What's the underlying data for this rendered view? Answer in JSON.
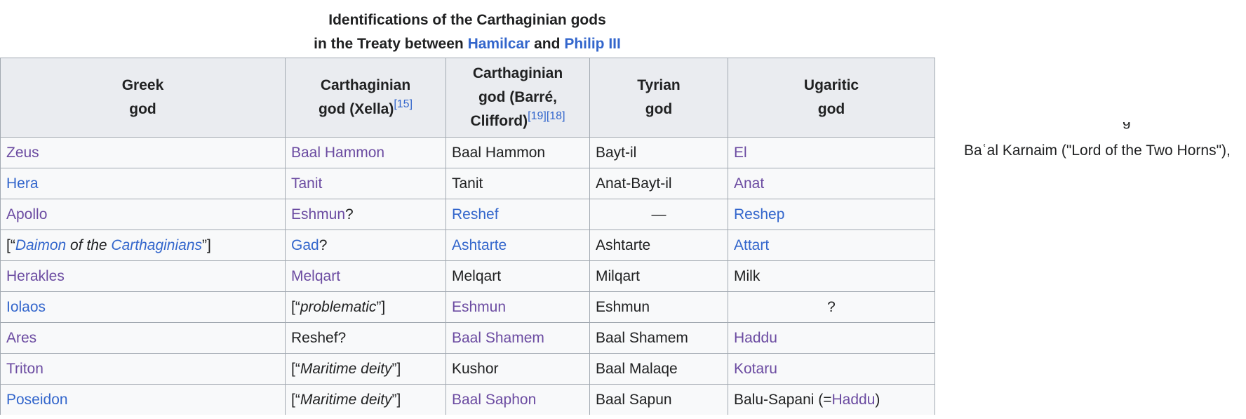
{
  "caption": {
    "line1": "Identifications of the Carthaginian gods",
    "line2_prefix": "in the Treaty between ",
    "hamilcar": "Hamilcar",
    "and": " and ",
    "philip": "Philip III"
  },
  "headers": {
    "greek": [
      "Greek",
      "god"
    ],
    "xella": [
      "Carthaginian",
      "god (Xella)"
    ],
    "xella_ref": "[15]",
    "barre": [
      "Carthaginian",
      "god (Barré,",
      "Clifford)"
    ],
    "barre_refs": "[19][18]",
    "tyrian": [
      "Tyrian",
      "god"
    ],
    "ugaritic": [
      "Ugaritic",
      "god"
    ]
  },
  "rows": [
    {
      "greek": "Zeus",
      "xella": "Baal Hammon",
      "barre": "Baal Hammon",
      "tyrian": "Bayt-il",
      "ugaritic": "El"
    },
    {
      "greek": "Hera",
      "xella": "Tanit",
      "barre": "Tanit",
      "tyrian": "Anat-Bayt-il",
      "ugaritic": "Anat"
    },
    {
      "greek": "Apollo",
      "xella": "Eshmun",
      "xella_suffix": "?",
      "barre": "Reshef",
      "tyrian": "—",
      "ugaritic": "Reshep"
    },
    {
      "greek_open": "[“",
      "greek_daimon": "Daimon",
      "greek_of": " of the ",
      "greek_carth": "Carthaginians",
      "greek_close": "”]",
      "xella": "Gad",
      "xella_suffix": "?",
      "barre": "Ashtarte",
      "tyrian": "Ashtarte",
      "ugaritic": "Attart"
    },
    {
      "greek": "Herakles",
      "xella": "Melqart",
      "barre": "Melqart",
      "tyrian": "Milqart",
      "ugaritic": "Milk"
    },
    {
      "greek": "Iolaos",
      "xella_open": "[“",
      "xella_italic": "problematic",
      "xella_close": "”]",
      "barre": "Eshmun",
      "tyrian": "Eshmun",
      "ugaritic": "?"
    },
    {
      "greek": "Ares",
      "xella": "Reshef?",
      "barre": "Baal Shamem",
      "tyrian": "Baal Shamem",
      "ugaritic": "Haddu"
    },
    {
      "greek": "Triton",
      "xella_open": "[“",
      "xella_italic": "Maritime deity",
      "xella_close": "”]",
      "barre": "Kushor",
      "tyrian": "Baal Malaqe",
      "ugaritic": "Kotaru"
    },
    {
      "greek": "Poseidon",
      "xella_open": "[“",
      "xella_italic": "Maritime deity",
      "xella_close": "”]",
      "barre": "Baal Saphon",
      "tyrian": "Baal Sapun",
      "ugaritic_prefix": "Balu-Sapani (=",
      "ugaritic_link": "Haddu",
      "ugaritic_suffix": ")"
    }
  ],
  "side_text": "Baʿal Karnaim (\"Lord of the Two Horns\"),",
  "side_clipped": "g"
}
